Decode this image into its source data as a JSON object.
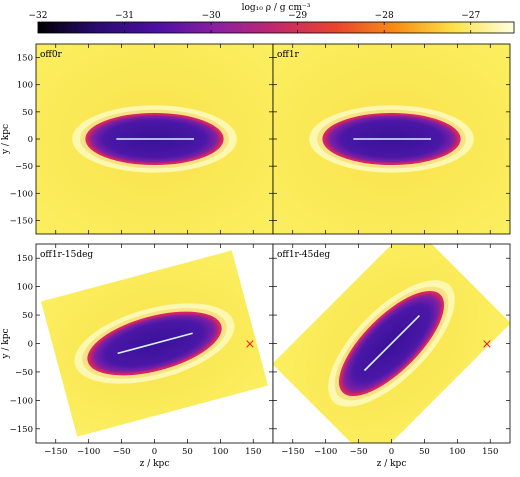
{
  "colorbar": {
    "label": "log₁₀ ρ / g cm⁻³",
    "ticks": [
      -32,
      -31,
      -30,
      -29,
      -28,
      -27
    ],
    "range": [
      -32,
      -26.5
    ],
    "colormap": [
      "#000000",
      "#2b0a72",
      "#4b10a2",
      "#8a1fa2",
      "#c1296a",
      "#e9442d",
      "#f98c15",
      "#fde24a",
      "#ffffe0"
    ]
  },
  "panels": [
    {
      "label": "off0r",
      "rotation_deg": 0,
      "show_x_marker": false,
      "x_ticks": [],
      "y_ticks": [
        -150,
        -100,
        -50,
        0,
        50,
        100,
        150
      ],
      "show_xlabel": false,
      "show_ylabel": true
    },
    {
      "label": "off1r",
      "rotation_deg": 0,
      "show_x_marker": false,
      "x_ticks": [],
      "y_ticks": [],
      "show_xlabel": false,
      "show_ylabel": false
    },
    {
      "label": "off1r-15deg",
      "rotation_deg": -15,
      "show_x_marker": true,
      "x_ticks": [
        -150,
        -100,
        -50,
        0,
        50,
        100,
        150
      ],
      "y_ticks": [
        -150,
        -100,
        -50,
        0,
        50,
        100,
        150
      ],
      "show_xlabel": true,
      "show_ylabel": true
    },
    {
      "label": "off1r-45deg",
      "rotation_deg": -45,
      "show_x_marker": true,
      "x_ticks": [
        -150,
        -100,
        -50,
        0,
        50,
        100,
        150
      ],
      "y_ticks": [],
      "show_xlabel": true,
      "show_ylabel": false
    }
  ],
  "axes": {
    "xlabel": "z / kpc",
    "ylabel": "y / kpc",
    "xlim": [
      -180,
      180
    ],
    "ylim": [
      -175,
      175
    ]
  },
  "colors": {
    "ambient": "#fbeb54",
    "shell": "#fdf8b0",
    "cocoon_edge": "#d6236a",
    "cocoon_mid": "#7a1fa8",
    "lobe": "#3a139a",
    "jet": "#d9f2ff",
    "marker": "#e0221a"
  },
  "marker_symbol": "×"
}
